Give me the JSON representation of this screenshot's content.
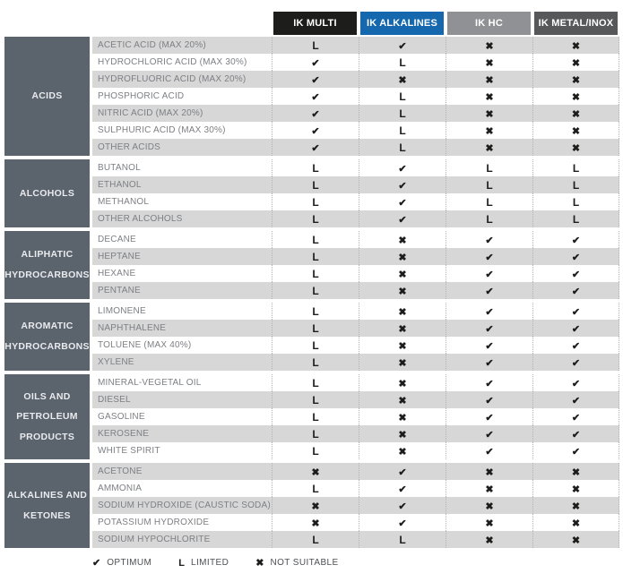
{
  "chart_data": {
    "type": "table",
    "title": "",
    "columns": [
      {
        "label": "IK MULTI",
        "bg": "#1d1d1b"
      },
      {
        "label": "IK ALKALINES",
        "bg": "#1568ad"
      },
      {
        "label": "IK HC",
        "bg": "#8f9194"
      },
      {
        "label": "IK METAL/INOX",
        "bg": "#57585a"
      }
    ],
    "value_meanings": {
      "check": "OPTIMUM",
      "L": "LIMITED",
      "x": "NOT SUITABLE"
    },
    "sections": [
      {
        "category": "ACIDS",
        "rows": [
          {
            "name": "ACETIC ACID (MAX 20%)",
            "values": [
              "L",
              "check",
              "x",
              "x"
            ]
          },
          {
            "name": "HYDROCHLORIC ACID (MAX 30%)",
            "values": [
              "check",
              "L",
              "x",
              "x"
            ]
          },
          {
            "name": "HYDROFLUORIC ACID (MAX 20%)",
            "values": [
              "check",
              "x",
              "x",
              "x"
            ]
          },
          {
            "name": "PHOSPHORIC ACID",
            "values": [
              "check",
              "L",
              "x",
              "x"
            ]
          },
          {
            "name": "NITRIC ACID (MAX 20%)",
            "values": [
              "check",
              "L",
              "x",
              "x"
            ]
          },
          {
            "name": "SULPHURIC ACID (MAX 30%)",
            "values": [
              "check",
              "L",
              "x",
              "x"
            ]
          },
          {
            "name": "OTHER ACIDS",
            "values": [
              "check",
              "L",
              "x",
              "x"
            ]
          }
        ]
      },
      {
        "category": "ALCOHOLS",
        "rows": [
          {
            "name": "BUTANOL",
            "values": [
              "L",
              "check",
              "L",
              "L"
            ]
          },
          {
            "name": "ETHANOL",
            "values": [
              "L",
              "check",
              "L",
              "L"
            ]
          },
          {
            "name": "METHANOL",
            "values": [
              "L",
              "check",
              "L",
              "L"
            ]
          },
          {
            "name": "OTHER ALCOHOLS",
            "values": [
              "L",
              "check",
              "L",
              "L"
            ]
          }
        ]
      },
      {
        "category": "ALIPHATIC HYDROCARBONS",
        "rows": [
          {
            "name": "DECANE",
            "values": [
              "L",
              "x",
              "check",
              "check"
            ]
          },
          {
            "name": "HEPTANE",
            "values": [
              "L",
              "x",
              "check",
              "check"
            ]
          },
          {
            "name": "HEXANE",
            "values": [
              "L",
              "x",
              "check",
              "check"
            ]
          },
          {
            "name": "PENTANE",
            "values": [
              "L",
              "x",
              "check",
              "check"
            ]
          }
        ]
      },
      {
        "category": "AROMATIC HYDROCARBONS",
        "rows": [
          {
            "name": "LIMONENE",
            "values": [
              "L",
              "x",
              "check",
              "check"
            ]
          },
          {
            "name": "NAPHTHALENE",
            "values": [
              "L",
              "x",
              "check",
              "check"
            ]
          },
          {
            "name": "TOLUENE (MAX 40%)",
            "values": [
              "L",
              "x",
              "check",
              "check"
            ]
          },
          {
            "name": "XYLENE",
            "values": [
              "L",
              "x",
              "check",
              "check"
            ]
          }
        ]
      },
      {
        "category": "OILS AND PETROLEUM PRODUCTS",
        "rows": [
          {
            "name": "MINERAL-VEGETAL OIL",
            "values": [
              "L",
              "x",
              "check",
              "check"
            ]
          },
          {
            "name": "DIESEL",
            "values": [
              "L",
              "x",
              "check",
              "check"
            ]
          },
          {
            "name": "GASOLINE",
            "values": [
              "L",
              "x",
              "check",
              "check"
            ]
          },
          {
            "name": "KEROSENE",
            "values": [
              "L",
              "x",
              "check",
              "check"
            ]
          },
          {
            "name": "WHITE SPIRIT",
            "values": [
              "L",
              "x",
              "check",
              "check"
            ]
          }
        ]
      },
      {
        "category": "ALKALINES AND KETONES",
        "rows": [
          {
            "name": "ACETONE",
            "values": [
              "x",
              "check",
              "x",
              "x"
            ]
          },
          {
            "name": "AMMONIA",
            "values": [
              "L",
              "check",
              "x",
              "x"
            ]
          },
          {
            "name": "SODIUM HYDROXIDE (CAUSTIC SODA)",
            "values": [
              "x",
              "check",
              "x",
              "x"
            ]
          },
          {
            "name": "POTASSIUM HYDROXIDE",
            "values": [
              "x",
              "check",
              "x",
              "x"
            ]
          },
          {
            "name": "SODIUM HYPOCHLORITE",
            "values": [
              "L",
              "L",
              "x",
              "x"
            ]
          }
        ]
      }
    ],
    "legend": [
      {
        "symbol": "check",
        "label": "OPTIMUM"
      },
      {
        "symbol": "L",
        "label": "LIMITED"
      },
      {
        "symbol": "x",
        "label": "NOT SUITABLE"
      }
    ],
    "colors": {
      "category_bg": "#5b636d",
      "stripe_gray": "#d7d7d7",
      "symbol": "#1d1d1b"
    },
    "layout": {
      "stripe_start": "gray",
      "stripe_scope": "global"
    }
  }
}
